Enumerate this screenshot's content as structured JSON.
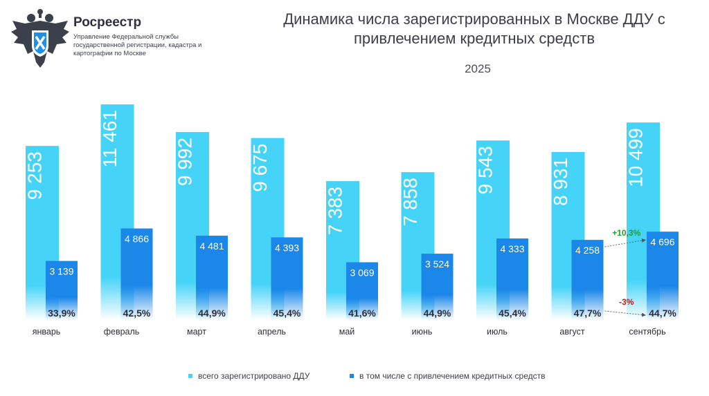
{
  "brand": {
    "name": "Росреестр",
    "subtitle": "Управление Федеральной службы государственной регистрации, кадастра и картографии по Москве"
  },
  "colors": {
    "total": "#45d3f7",
    "credit": "#1b87e8",
    "up": "#1f9e2e",
    "down": "#c0161d",
    "text": "#2e2e38"
  },
  "chart_data": {
    "type": "bar",
    "title": "Динамика числа зарегистрированных в Москве ДДУ с привлечением кредитных средств",
    "subtitle": "2025",
    "categories": [
      "январь",
      "февраль",
      "март",
      "апрель",
      "май",
      "июнь",
      "июль",
      "август",
      "сентябрь"
    ],
    "series": [
      {
        "name": "всего зарегистрировано ДДУ",
        "values": [
          9253,
          11461,
          9992,
          9675,
          7383,
          7858,
          9543,
          8931,
          10499
        ],
        "labels": [
          "9 253",
          "11 461",
          "9 992",
          "9 675",
          "7 383",
          "7 858",
          "9 543",
          "8 931",
          "10 499"
        ]
      },
      {
        "name": "в том числе с привлечением кредитных средств",
        "values": [
          3139,
          4866,
          4481,
          4393,
          3069,
          3524,
          4333,
          4258,
          4696
        ],
        "labels": [
          "3 139",
          "4 866",
          "4 481",
          "4 393",
          "3 069",
          "3 524",
          "4 333",
          "4 258",
          "4 696"
        ]
      }
    ],
    "share_labels": [
      "33,9%",
      "42,5%",
      "44,9%",
      "45,4%",
      "41,6%",
      "44,9%",
      "45,4%",
      "47,7%",
      "44,7%"
    ],
    "annotations": [
      {
        "text": "+10,3%",
        "from": "август",
        "to": "сентябрь",
        "kind": "up"
      },
      {
        "text": "-3%",
        "from": "август",
        "to": "сентябрь",
        "kind": "down"
      }
    ],
    "ylim": [
      0,
      11500
    ],
    "legend_position": "bottom"
  }
}
